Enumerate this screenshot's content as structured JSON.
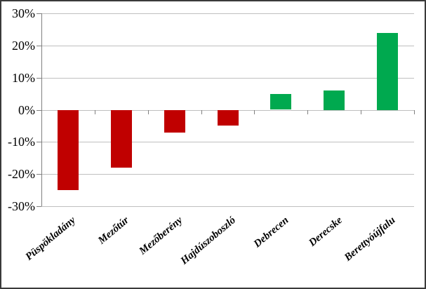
{
  "chart_data": {
    "type": "bar",
    "title": "",
    "xlabel": "",
    "ylabel": "",
    "categories": [
      "Püspökladány",
      "Mezőtúr",
      "Mezőberény",
      "Hajdúszoboszló",
      "Debrecen",
      "Derecske",
      "Berettyóújfalu"
    ],
    "values": [
      -25,
      -18,
      -7,
      -5,
      5,
      6,
      24
    ],
    "unit": "%",
    "ylim": [
      -30,
      30
    ],
    "yticks": [
      30,
      20,
      10,
      0,
      -10,
      -20,
      -30
    ],
    "ytick_labels": [
      "30%",
      "20%",
      "10%",
      "0%",
      "-10%",
      "-20%",
      "-30%"
    ],
    "grid": true,
    "legend": "none",
    "colors": {
      "positive": "#00A94F",
      "negative": "#C00000",
      "gridline": "#BFBFBF",
      "axis": "#808080",
      "frame_border": "#3A3A3A",
      "background": "#FFFFFF",
      "text": "#000000"
    }
  }
}
